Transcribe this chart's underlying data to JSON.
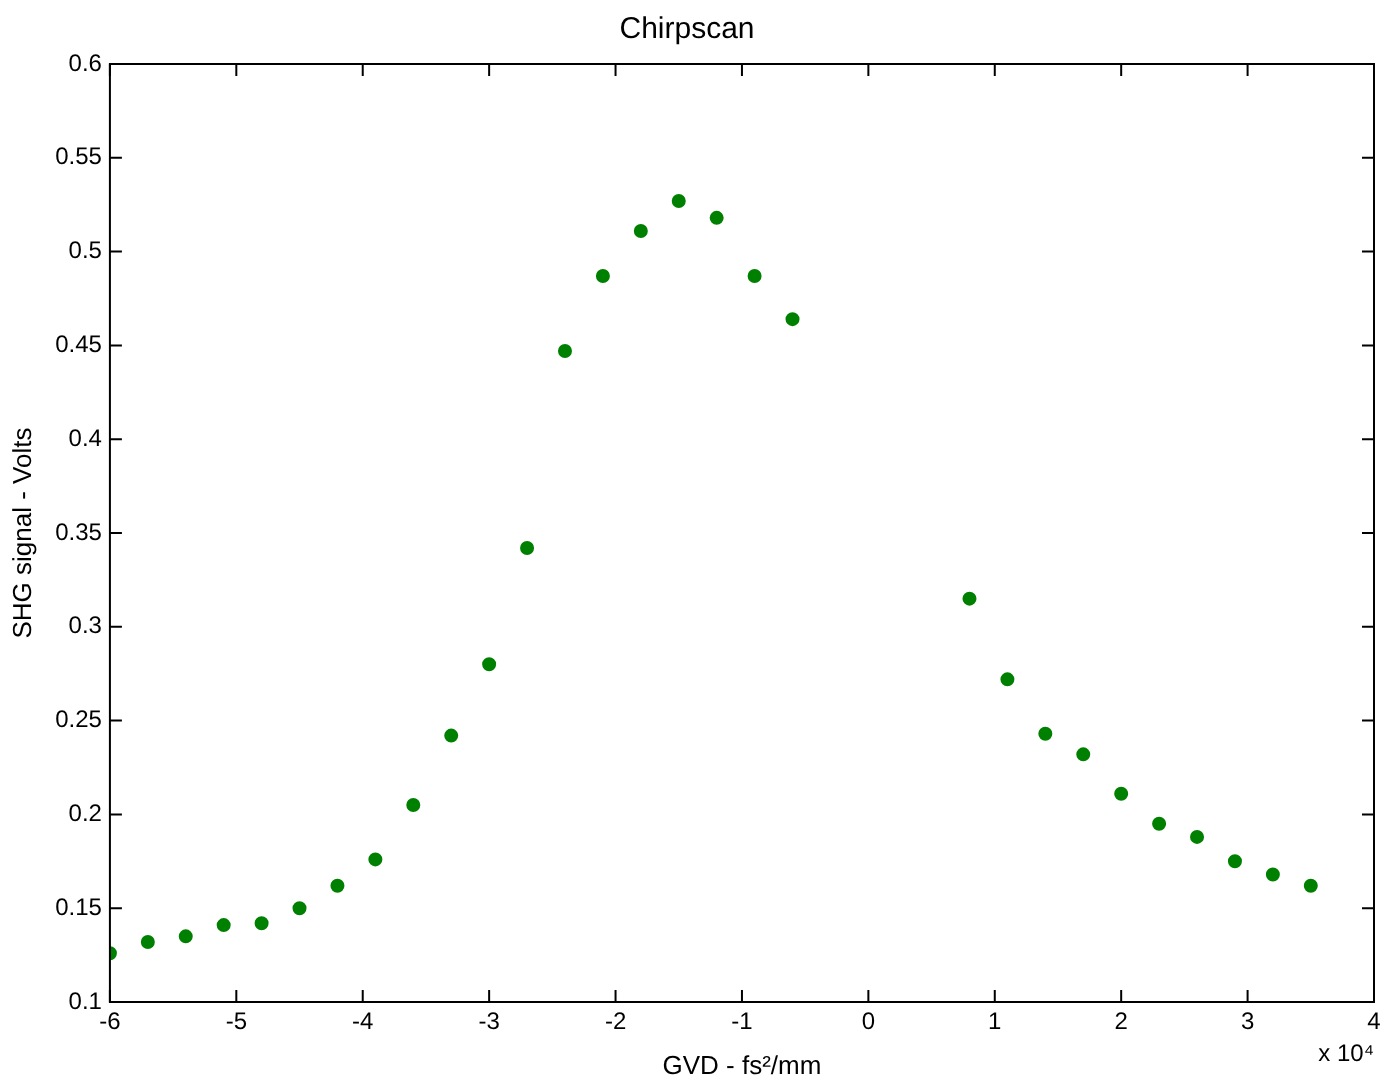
{
  "chart_data": {
    "type": "scatter",
    "title": "Chirpscan",
    "xlabel": "GVD - fs²/mm",
    "ylabel": "SHG signal - Volts",
    "annotations": [
      "x 10⁴"
    ],
    "x": [
      -6,
      -5.7,
      -5.4,
      -5.1,
      -4.8,
      -4.5,
      -4.2,
      -3.9,
      -3.6,
      -3.3,
      -3.0,
      -2.7,
      -2.4,
      -2.1,
      -1.8,
      -1.5,
      -1.2,
      -0.9,
      -0.6,
      0.8,
      1.1,
      1.4,
      1.7,
      2.0,
      2.3,
      2.6,
      2.9,
      3.2,
      3.5
    ],
    "series": [
      {
        "color": "#008000",
        "values": [
          0.126,
          0.132,
          0.135,
          0.141,
          0.142,
          0.15,
          0.162,
          0.176,
          0.205,
          0.242,
          0.28,
          0.342,
          0.447,
          0.487,
          0.511,
          0.527,
          0.518,
          0.487,
          0.464,
          0.315,
          0.272,
          0.243,
          0.232,
          0.211,
          0.195,
          0.188,
          0.175,
          0.168,
          0.162
        ]
      }
    ],
    "xlim": [
      -6,
      4
    ],
    "xticks": [
      -6,
      -5,
      -4,
      -3,
      -2,
      -1,
      0,
      1,
      2,
      3,
      4
    ],
    "ylim": [
      0.1,
      0.6
    ],
    "yticks": [
      0.1,
      0.15,
      0.2,
      0.25,
      0.3,
      0.35,
      0.4,
      0.45,
      0.5,
      0.55,
      0.6
    ],
    "grid": false,
    "legend": false,
    "marker": "circle"
  }
}
